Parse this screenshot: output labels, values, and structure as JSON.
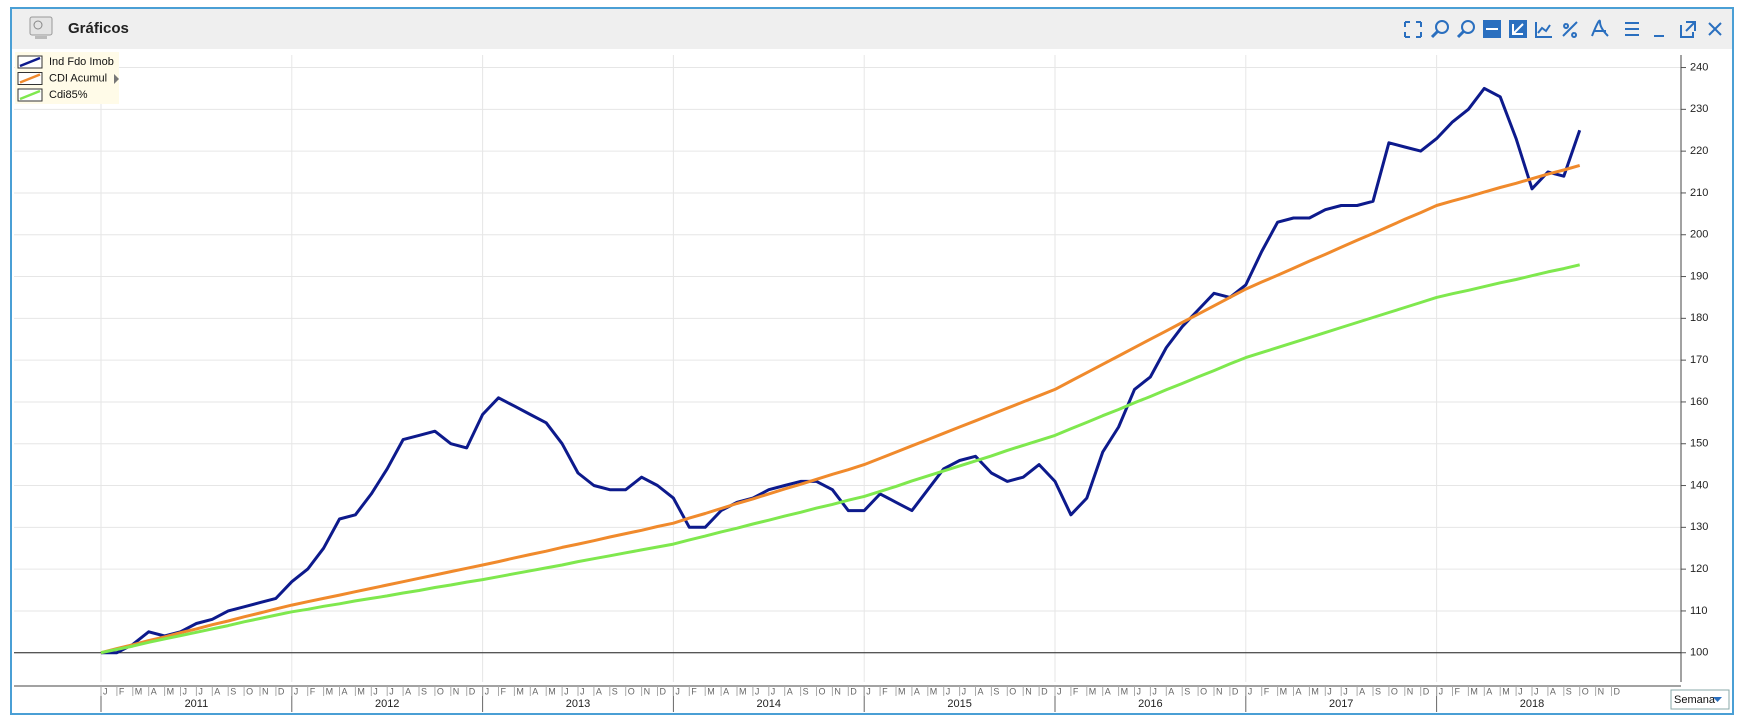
{
  "window": {
    "title": "Gráficos"
  },
  "controls": {
    "interval": "Semana"
  },
  "chart_data": {
    "type": "line",
    "x": [
      "2011-01",
      "2011-02",
      "2011-03",
      "2011-04",
      "2011-05",
      "2011-06",
      "2011-07",
      "2011-08",
      "2011-09",
      "2011-10",
      "2011-11",
      "2011-12",
      "2012-01",
      "2012-02",
      "2012-03",
      "2012-04",
      "2012-05",
      "2012-06",
      "2012-07",
      "2012-08",
      "2012-09",
      "2012-10",
      "2012-11",
      "2012-12",
      "2013-01",
      "2013-02",
      "2013-03",
      "2013-04",
      "2013-05",
      "2013-06",
      "2013-07",
      "2013-08",
      "2013-09",
      "2013-10",
      "2013-11",
      "2013-12",
      "2014-01",
      "2014-02",
      "2014-03",
      "2014-04",
      "2014-05",
      "2014-06",
      "2014-07",
      "2014-08",
      "2014-09",
      "2014-10",
      "2014-11",
      "2014-12",
      "2015-01",
      "2015-02",
      "2015-03",
      "2015-04",
      "2015-05",
      "2015-06",
      "2015-07",
      "2015-08",
      "2015-09",
      "2015-10",
      "2015-11",
      "2015-12",
      "2016-01",
      "2016-02",
      "2016-03",
      "2016-04",
      "2016-05",
      "2016-06",
      "2016-07",
      "2016-08",
      "2016-09",
      "2016-10",
      "2016-11",
      "2016-12",
      "2017-01",
      "2017-02",
      "2017-03",
      "2017-04",
      "2017-05",
      "2017-06",
      "2017-07",
      "2017-08",
      "2017-09",
      "2017-10",
      "2017-11",
      "2017-12",
      "2018-01",
      "2018-02",
      "2018-03",
      "2018-04",
      "2018-05",
      "2018-06",
      "2018-07",
      "2018-08",
      "2018-09",
      "2018-10"
    ],
    "month_labels": [
      "J",
      "F",
      "M",
      "A",
      "M",
      "J",
      "J",
      "A",
      "S",
      "O",
      "N",
      "D"
    ],
    "years": [
      2011,
      2012,
      2013,
      2014,
      2015,
      2016,
      2017,
      2018
    ],
    "series": [
      {
        "name": "Ind Fdo Imob",
        "color": "#0d1a8c",
        "values": [
          100,
          100,
          102,
          105,
          104,
          105,
          107,
          108,
          110,
          111,
          112,
          113,
          117,
          120,
          125,
          132,
          133,
          138,
          144,
          151,
          152,
          153,
          150,
          149,
          157,
          161,
          159,
          157,
          155,
          150,
          143,
          140,
          139,
          139,
          142,
          140,
          137,
          130,
          130,
          134,
          136,
          137,
          139,
          140,
          141,
          141,
          139,
          134,
          134,
          138,
          136,
          134,
          139,
          144,
          146,
          147,
          143,
          141,
          142,
          145,
          141,
          133,
          137,
          148,
          154,
          163,
          166,
          173,
          178,
          182,
          186,
          185,
          188,
          196,
          203,
          204,
          204,
          206,
          207,
          207,
          208,
          222,
          221,
          220,
          223,
          227,
          230,
          235,
          233,
          223,
          211,
          215,
          214,
          225
        ]
      },
      {
        "name": "CDI Acumul",
        "color": "#f08a2c",
        "values": [
          100,
          101,
          101.9,
          102.9,
          103.8,
          104.8,
          105.7,
          106.7,
          107.6,
          108.6,
          109.5,
          110.5,
          111.4,
          112.2,
          113,
          113.8,
          114.6,
          115.4,
          116.2,
          117,
          117.8,
          118.6,
          119.4,
          120.2,
          121,
          121.8,
          122.7,
          123.5,
          124.3,
          125.2,
          126,
          126.8,
          127.7,
          128.5,
          129.3,
          130.2,
          131,
          132.2,
          133.3,
          134.5,
          135.7,
          136.8,
          138,
          139.2,
          140.3,
          141.5,
          142.7,
          143.8,
          145,
          146.5,
          148,
          149.5,
          151,
          152.5,
          154,
          155.5,
          157,
          158.5,
          160,
          161.5,
          163,
          165,
          167,
          169,
          171,
          173,
          175,
          177,
          179,
          181,
          183,
          185,
          187,
          188.7,
          190.3,
          192,
          193.7,
          195.3,
          197,
          198.7,
          200.3,
          202,
          203.7,
          205.3,
          207,
          208.1,
          209.1,
          210.2,
          211.3,
          212.3,
          213.4,
          214.5,
          215.5,
          216.6
        ]
      },
      {
        "name": "Cdi85%",
        "color": "#7fe84e",
        "values": [
          100,
          100.8,
          101.6,
          102.5,
          103.3,
          104.1,
          104.9,
          105.7,
          106.5,
          107.4,
          108.2,
          109,
          109.8,
          110.4,
          111.1,
          111.7,
          112.4,
          113,
          113.6,
          114.3,
          114.9,
          115.6,
          116.2,
          116.9,
          117.5,
          118.2,
          118.9,
          119.6,
          120.3,
          121,
          121.8,
          122.5,
          123.2,
          123.9,
          124.6,
          125.3,
          126,
          127,
          127.9,
          128.9,
          129.8,
          130.8,
          131.7,
          132.7,
          133.6,
          134.6,
          135.5,
          136.5,
          137.4,
          138.6,
          139.8,
          141.1,
          142.3,
          143.5,
          144.7,
          145.9,
          147.1,
          148.4,
          149.6,
          150.8,
          152,
          153.6,
          155.1,
          156.7,
          158.2,
          159.8,
          161.3,
          162.9,
          164.4,
          166,
          167.5,
          169.1,
          170.6,
          171.8,
          173,
          174.2,
          175.4,
          176.6,
          177.8,
          179,
          180.2,
          181.4,
          182.6,
          183.8,
          185,
          185.9,
          186.7,
          187.6,
          188.5,
          189.3,
          190.2,
          191.1,
          191.9,
          192.8
        ]
      }
    ],
    "ylim": [
      93,
      243
    ],
    "yticks": [
      100,
      110,
      120,
      130,
      140,
      150,
      160,
      170,
      180,
      190,
      200,
      210,
      220,
      230,
      240
    ],
    "baseline": 100,
    "grid": true,
    "legend": "top-left"
  }
}
